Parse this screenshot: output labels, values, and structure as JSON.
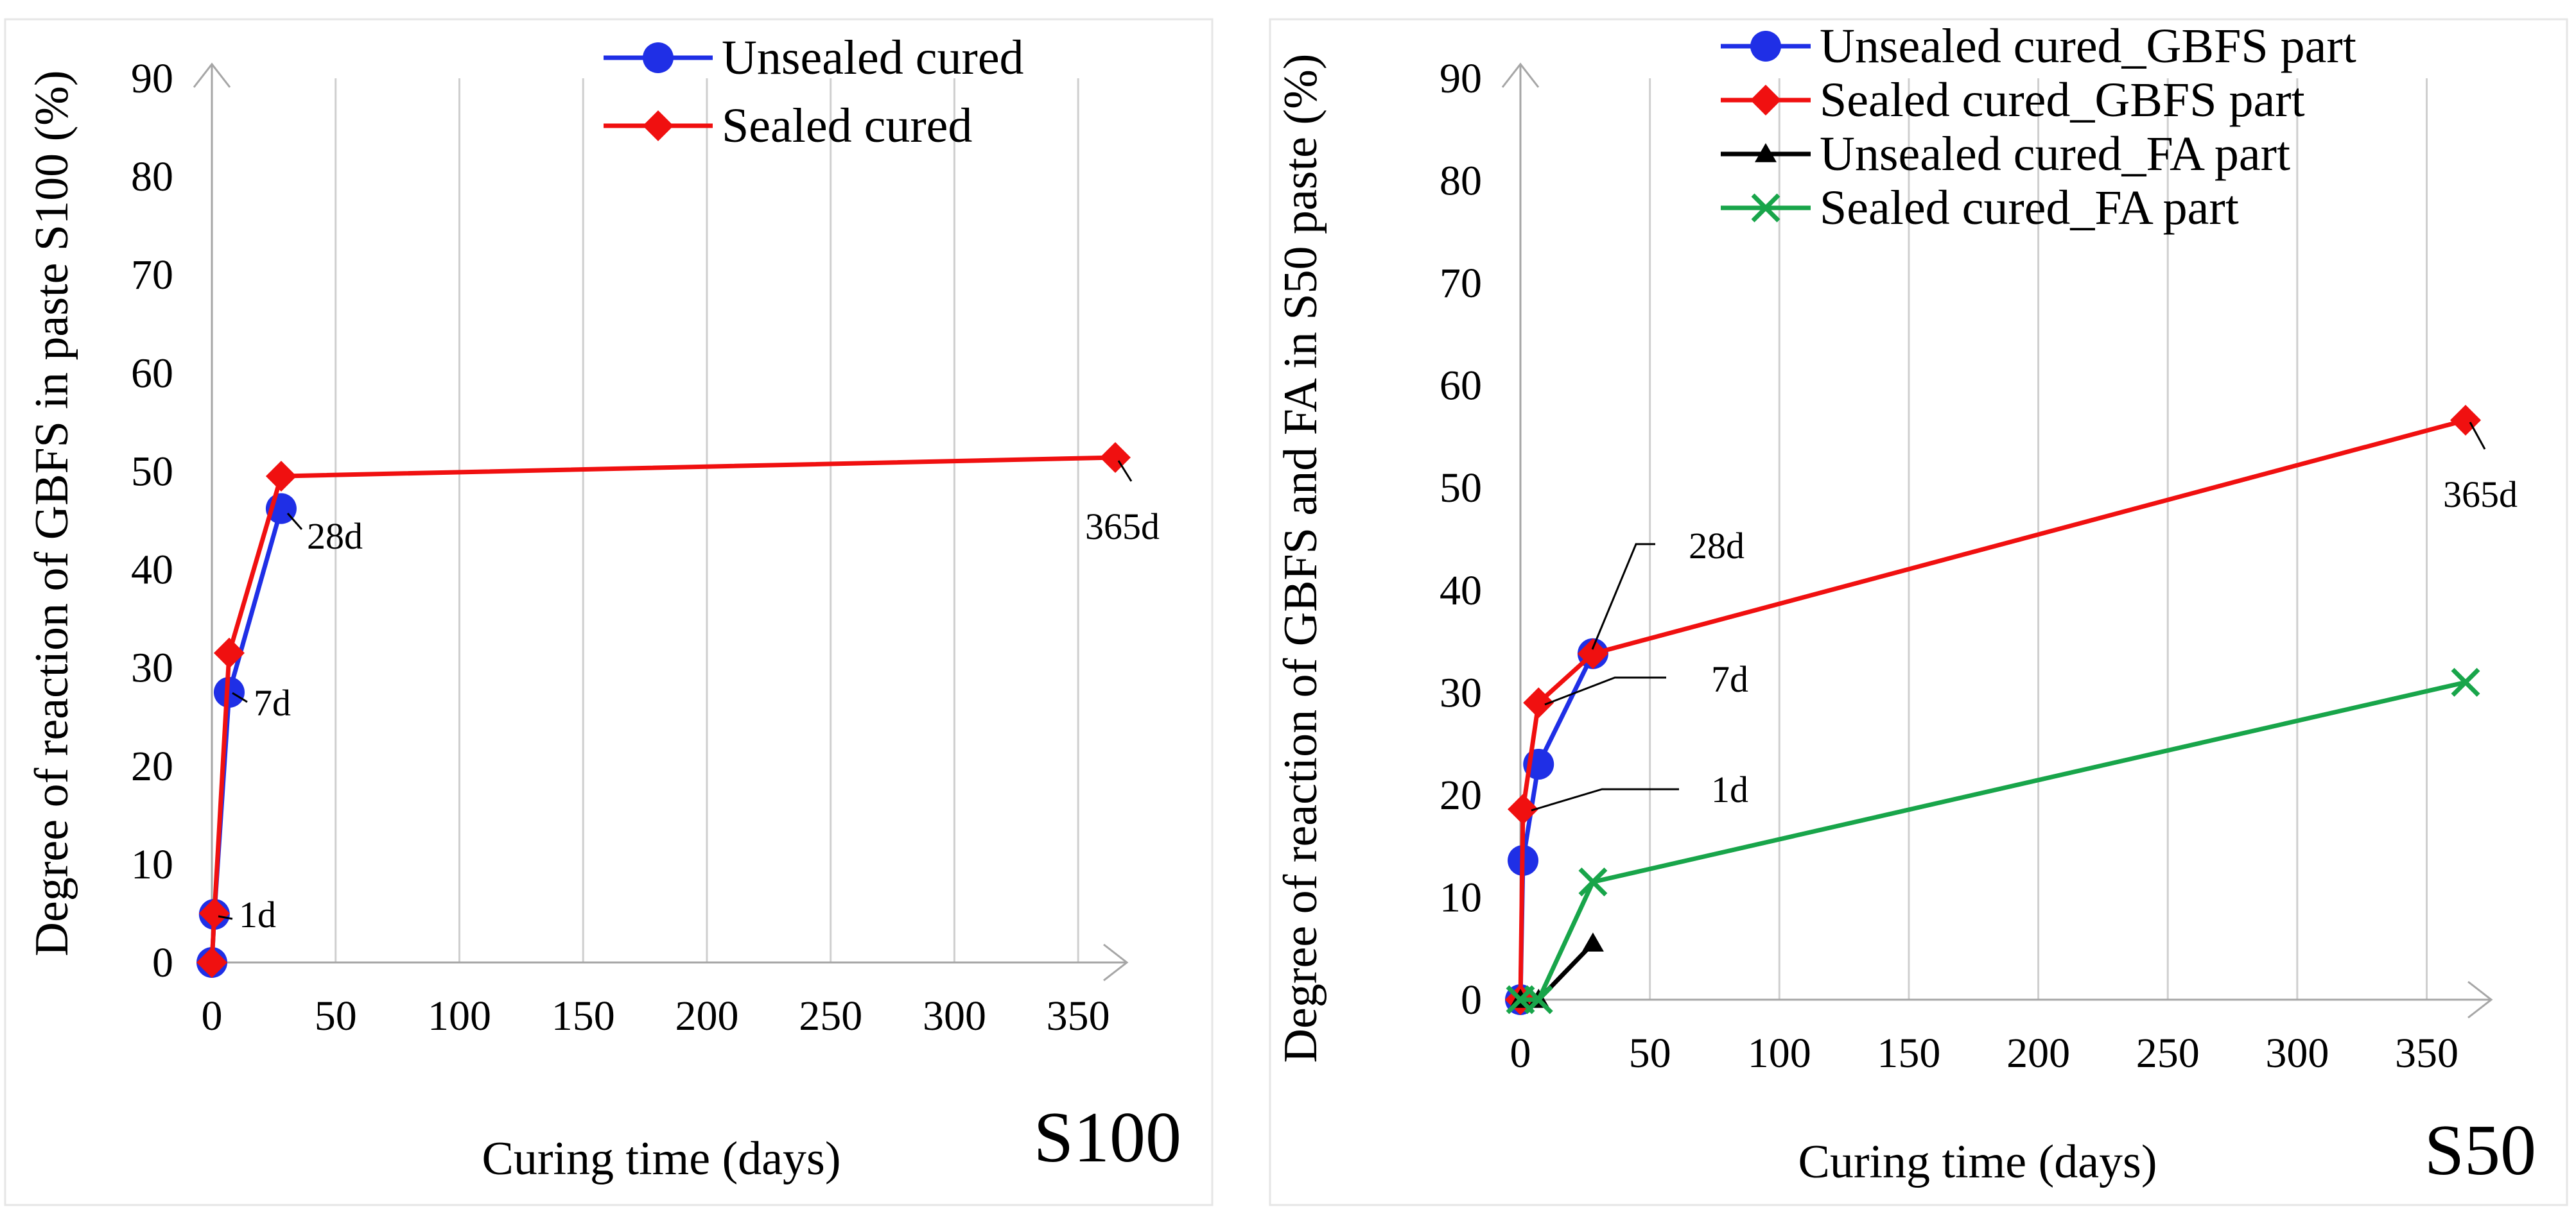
{
  "chart_data": [
    {
      "type": "line",
      "panel_label": "S100",
      "xlabel": "Curing time (days)",
      "ylabel": "Degree of reaction of GBFS in paste S100 (%)",
      "xlim": [
        0,
        365
      ],
      "ylim": [
        0,
        90
      ],
      "xticks": [
        0,
        50,
        100,
        150,
        200,
        250,
        300,
        350
      ],
      "yticks": [
        0,
        10,
        20,
        30,
        40,
        50,
        60,
        70,
        80,
        90
      ],
      "grid": "vertical",
      "legend_position": "top-right",
      "series": [
        {
          "name": "Unsealed cured",
          "color": "#1f2fe6",
          "marker": "circle",
          "x": [
            0,
            1,
            7,
            28
          ],
          "y": [
            0,
            4.9,
            27.5,
            46.2
          ]
        },
        {
          "name": "Sealed cured",
          "color": "#f01010",
          "marker": "diamond",
          "x": [
            0,
            1,
            7,
            28,
            365
          ],
          "y": [
            0,
            5.0,
            31.5,
            49.5,
            51.4
          ]
        }
      ],
      "annotations": [
        {
          "text": "1d",
          "x": 1,
          "y": 4.9
        },
        {
          "text": "7d",
          "x": 7,
          "y": 27.5
        },
        {
          "text": "28d",
          "x": 28,
          "y": 46.2
        },
        {
          "text": "365d",
          "x": 365,
          "y": 51.4
        }
      ]
    },
    {
      "type": "line",
      "panel_label": "S50",
      "xlabel": "Curing time (days)",
      "ylabel": "Degree of reaction of GBFS and FA in S50 paste (%)",
      "xlim": [
        0,
        365
      ],
      "ylim": [
        0,
        90
      ],
      "xticks": [
        0,
        50,
        100,
        150,
        200,
        250,
        300,
        350
      ],
      "yticks": [
        0,
        10,
        20,
        30,
        40,
        50,
        60,
        70,
        80,
        90
      ],
      "grid": "vertical",
      "legend_position": "top-right",
      "series": [
        {
          "name": "Unsealed cured_GBFS part",
          "color": "#1f2fe6",
          "marker": "circle",
          "x": [
            0,
            1,
            7,
            28
          ],
          "y": [
            0,
            13.6,
            23.0,
            33.8
          ]
        },
        {
          "name": "Sealed cured_GBFS part",
          "color": "#f01010",
          "marker": "diamond",
          "x": [
            0,
            1,
            7,
            28,
            365
          ],
          "y": [
            0,
            18.6,
            29.0,
            33.8,
            56.6
          ]
        },
        {
          "name": "Unsealed cured_FA part",
          "color": "#000000",
          "marker": "triangle",
          "x": [
            0,
            7,
            28
          ],
          "y": [
            0,
            0,
            5.5
          ]
        },
        {
          "name": "Sealed cured_FA part",
          "color": "#18a54a",
          "marker": "x",
          "x": [
            0,
            7,
            28,
            365
          ],
          "y": [
            0,
            0,
            11.5,
            31.0
          ]
        }
      ],
      "annotations": [
        {
          "text": "28d",
          "x": 28,
          "y": 33.8
        },
        {
          "text": "7d",
          "x": 7,
          "y": 29.0
        },
        {
          "text": "1d",
          "x": 1,
          "y": 18.6
        },
        {
          "text": "365d",
          "x": 365,
          "y": 56.6
        }
      ]
    }
  ]
}
